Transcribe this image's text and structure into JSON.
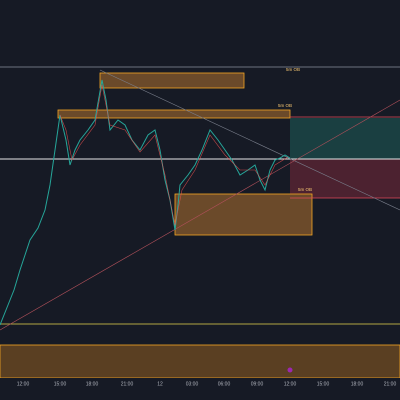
{
  "chart": {
    "order_blocks": [
      "5m OB",
      "5m OB",
      "5m OB"
    ],
    "x_axis_labels": [
      "12:00",
      "15:00",
      "18:00",
      "21:00",
      "12",
      "03:00",
      "06:00",
      "09:00",
      "12:00",
      "15:00",
      "18:00",
      "21:00"
    ]
  }
}
